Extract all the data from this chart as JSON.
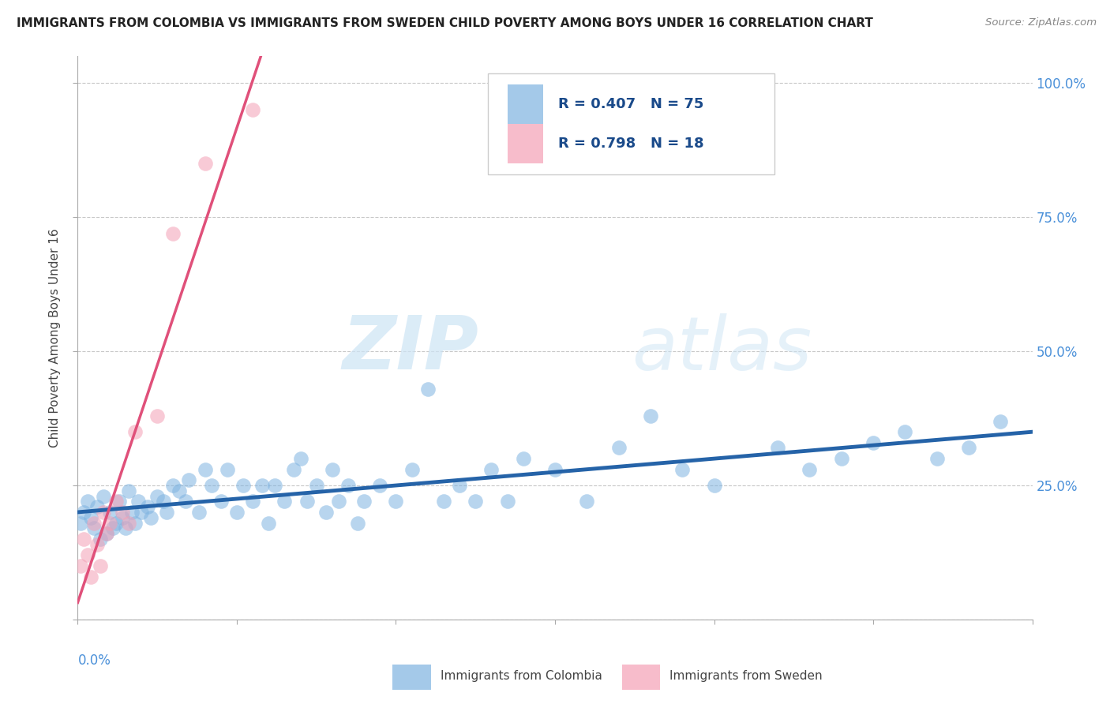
{
  "title": "IMMIGRANTS FROM COLOMBIA VS IMMIGRANTS FROM SWEDEN CHILD POVERTY AMONG BOYS UNDER 16 CORRELATION CHART",
  "source": "Source: ZipAtlas.com",
  "ylabel": "Child Poverty Among Boys Under 16",
  "yticks": [
    0.0,
    0.25,
    0.5,
    0.75,
    1.0
  ],
  "ytick_labels": [
    "",
    "25.0%",
    "50.0%",
    "75.0%",
    "100.0%"
  ],
  "xlim": [
    0.0,
    0.3
  ],
  "ylim": [
    0.0,
    1.05
  ],
  "colombia_R": 0.407,
  "colombia_N": 75,
  "sweden_R": 0.798,
  "sweden_N": 18,
  "colombia_color": "#7eb3e0",
  "sweden_color": "#f4a0b5",
  "colombia_line_color": "#2563a8",
  "sweden_line_color": "#e0507a",
  "legend_label_colombia": "Immigrants from Colombia",
  "legend_label_sweden": "Immigrants from Sweden",
  "watermark_zip": "ZIP",
  "watermark_atlas": "atlas",
  "colombia_x": [
    0.001,
    0.002,
    0.003,
    0.004,
    0.005,
    0.006,
    0.007,
    0.008,
    0.009,
    0.01,
    0.011,
    0.012,
    0.013,
    0.014,
    0.015,
    0.016,
    0.017,
    0.018,
    0.019,
    0.02,
    0.022,
    0.023,
    0.025,
    0.027,
    0.028,
    0.03,
    0.032,
    0.034,
    0.035,
    0.038,
    0.04,
    0.042,
    0.045,
    0.047,
    0.05,
    0.052,
    0.055,
    0.058,
    0.06,
    0.062,
    0.065,
    0.068,
    0.07,
    0.072,
    0.075,
    0.078,
    0.08,
    0.082,
    0.085,
    0.088,
    0.09,
    0.095,
    0.1,
    0.105,
    0.11,
    0.115,
    0.12,
    0.125,
    0.13,
    0.135,
    0.14,
    0.15,
    0.16,
    0.17,
    0.18,
    0.19,
    0.2,
    0.22,
    0.23,
    0.24,
    0.25,
    0.26,
    0.27,
    0.28,
    0.29
  ],
  "colombia_y": [
    0.18,
    0.2,
    0.22,
    0.19,
    0.17,
    0.21,
    0.15,
    0.23,
    0.16,
    0.2,
    0.17,
    0.18,
    0.22,
    0.19,
    0.17,
    0.24,
    0.2,
    0.18,
    0.22,
    0.2,
    0.21,
    0.19,
    0.23,
    0.22,
    0.2,
    0.25,
    0.24,
    0.22,
    0.26,
    0.2,
    0.28,
    0.25,
    0.22,
    0.28,
    0.2,
    0.25,
    0.22,
    0.25,
    0.18,
    0.25,
    0.22,
    0.28,
    0.3,
    0.22,
    0.25,
    0.2,
    0.28,
    0.22,
    0.25,
    0.18,
    0.22,
    0.25,
    0.22,
    0.28,
    0.43,
    0.22,
    0.25,
    0.22,
    0.28,
    0.22,
    0.3,
    0.28,
    0.22,
    0.32,
    0.38,
    0.28,
    0.25,
    0.32,
    0.28,
    0.3,
    0.33,
    0.35,
    0.3,
    0.32,
    0.37
  ],
  "sweden_x": [
    0.001,
    0.002,
    0.003,
    0.004,
    0.005,
    0.006,
    0.007,
    0.008,
    0.009,
    0.01,
    0.012,
    0.014,
    0.016,
    0.018,
    0.025,
    0.03,
    0.04,
    0.055
  ],
  "sweden_y": [
    0.1,
    0.15,
    0.12,
    0.08,
    0.18,
    0.14,
    0.1,
    0.2,
    0.16,
    0.18,
    0.22,
    0.2,
    0.18,
    0.35,
    0.38,
    0.72,
    0.85,
    0.95
  ]
}
